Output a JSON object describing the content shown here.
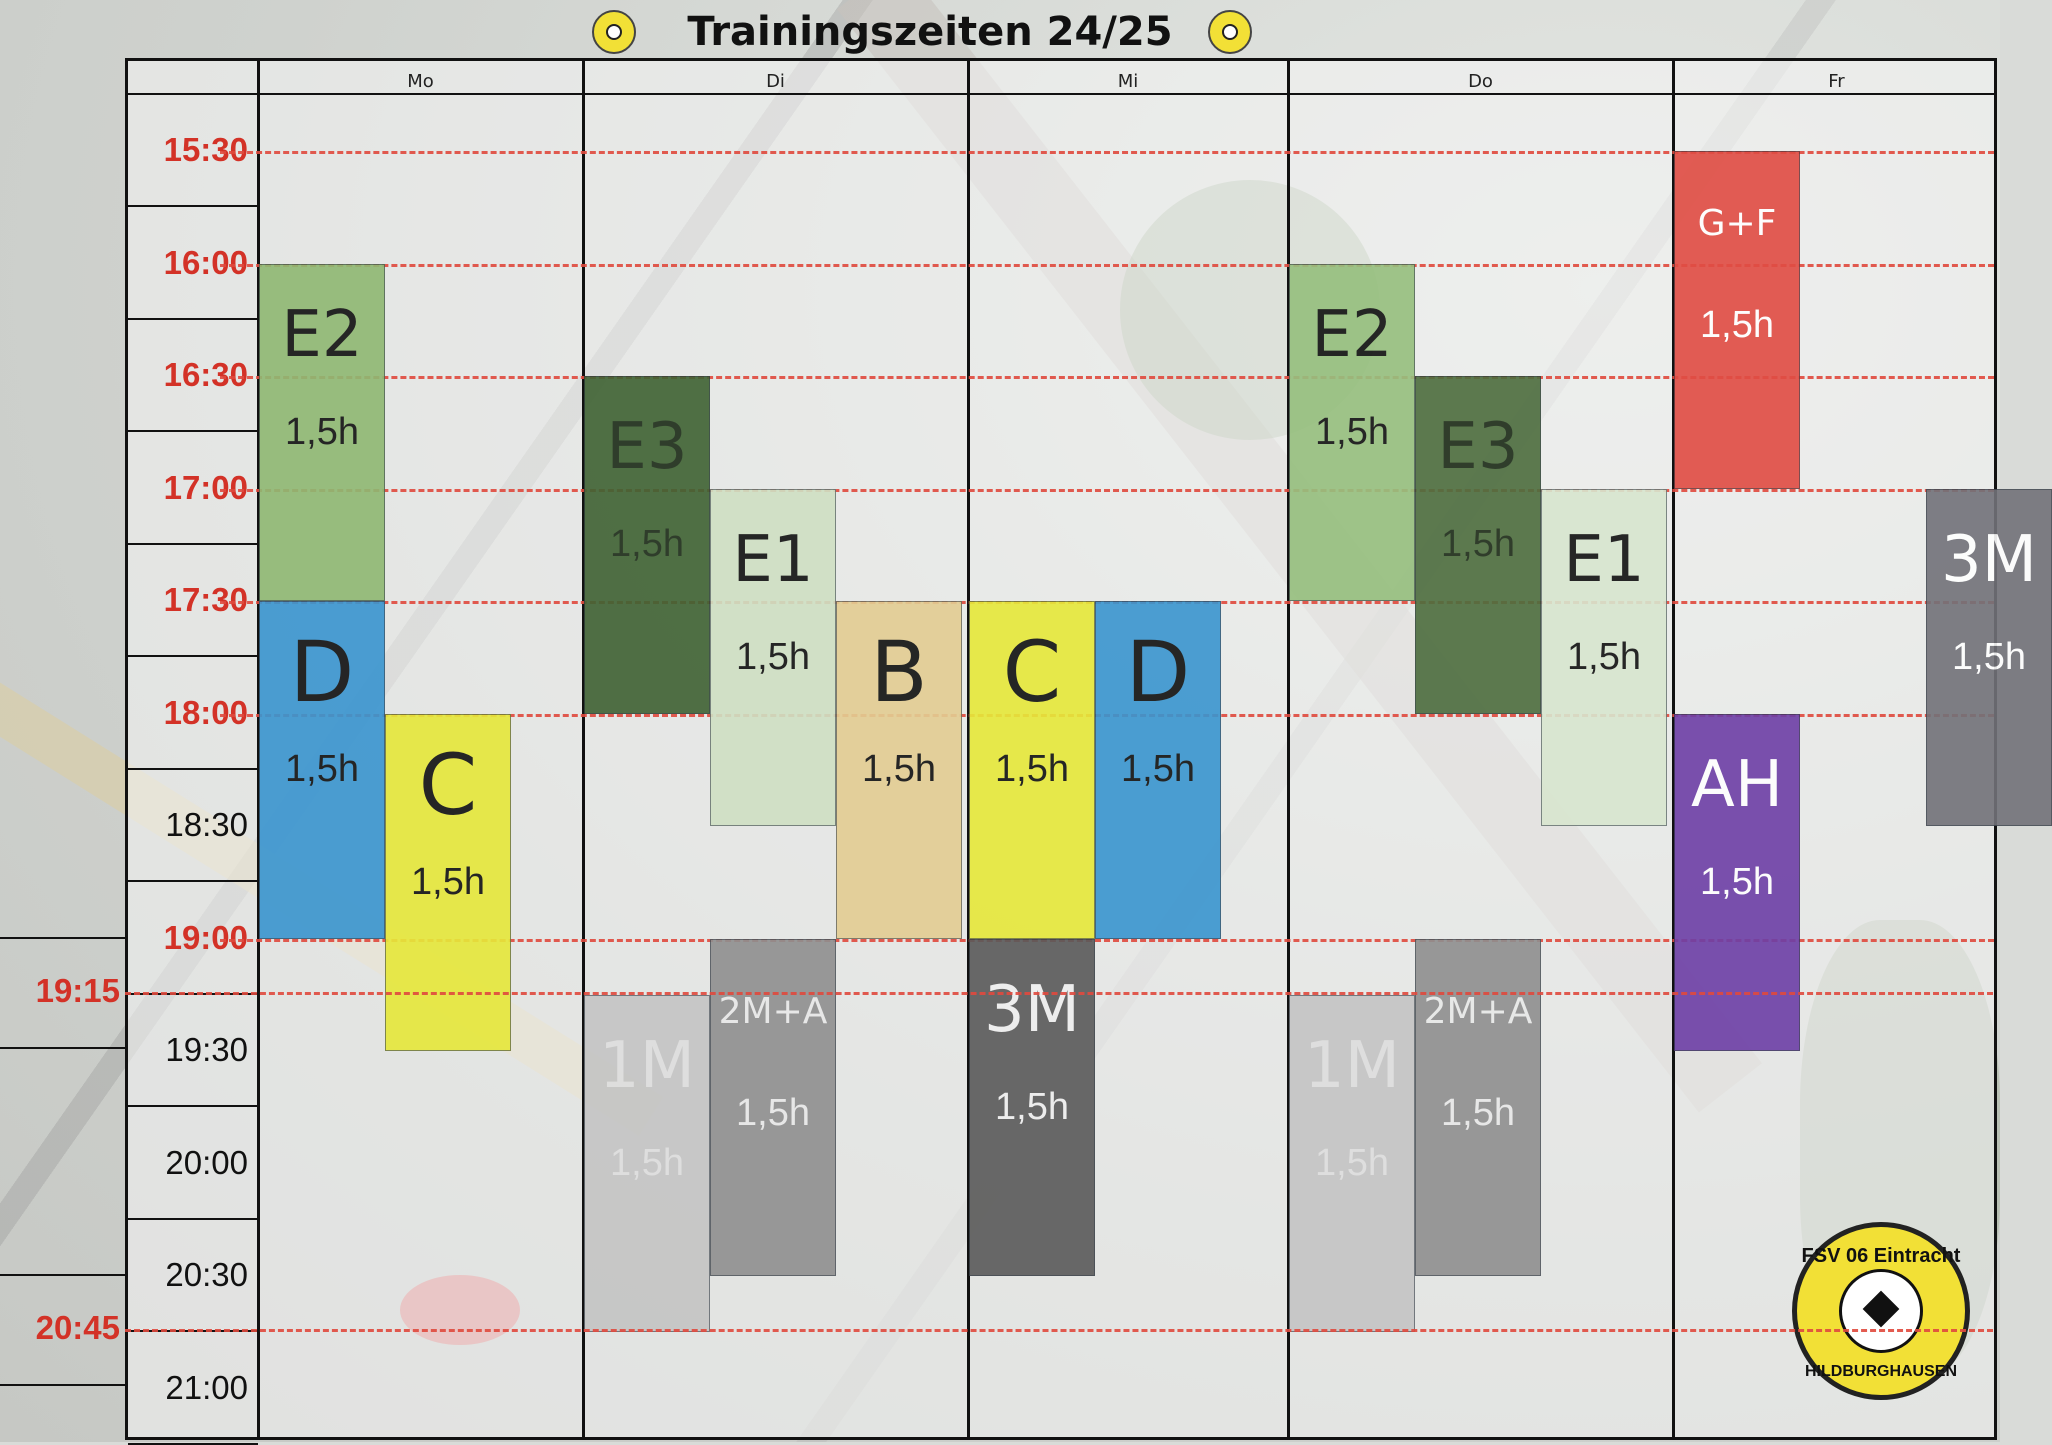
{
  "title": "Trainingszeiten 24/25",
  "days": [
    "Mo",
    "Di",
    "Mi",
    "Do",
    "Fr"
  ],
  "times": [
    {
      "label": "15:30",
      "red": true
    },
    {
      "label": "16:00",
      "red": true
    },
    {
      "label": "16:30",
      "red": true
    },
    {
      "label": "17:00",
      "red": true
    },
    {
      "label": "17:30",
      "red": true
    },
    {
      "label": "18:00",
      "red": true
    },
    {
      "label": "18:30",
      "red": false
    },
    {
      "label": "19:00",
      "red": true
    },
    {
      "label": "19:30",
      "red": false
    },
    {
      "label": "20:00",
      "red": false
    },
    {
      "label": "20:30",
      "red": false
    },
    {
      "label": "21:00",
      "red": false
    }
  ],
  "side_times": [
    "19:15",
    "20:45"
  ],
  "blocks": [
    {
      "day": "Mo",
      "lane": 0,
      "start": "16:00",
      "end": "17:30",
      "name": "E2",
      "dur": "1,5h",
      "color": "#8fb872",
      "text": "#111111"
    },
    {
      "day": "Mo",
      "lane": 0,
      "start": "17:30",
      "end": "19:00",
      "name": "D",
      "dur": "1,5h",
      "color": "#3a95cf",
      "text": "#111111"
    },
    {
      "day": "Mo",
      "lane": 1,
      "start": "18:00",
      "end": "19:30",
      "name": "C",
      "dur": "1,5h",
      "color": "#e6e83a",
      "text": "#111111"
    },
    {
      "day": "Di",
      "lane": 0,
      "start": "16:30",
      "end": "18:00",
      "name": "E3",
      "dur": "1,5h",
      "color": "#3f6233",
      "text": "#1c2b17"
    },
    {
      "day": "Di",
      "lane": 1,
      "start": "17:00",
      "end": "18:30",
      "name": "E1",
      "dur": "1,5h",
      "color": "#cfe0c3",
      "text": "#111111"
    },
    {
      "day": "Di",
      "lane": 2,
      "start": "17:30",
      "end": "19:00",
      "name": "B",
      "dur": "1,5h",
      "color": "#e3cd92",
      "text": "#111111"
    },
    {
      "day": "Di",
      "lane": 0,
      "start": "19:15",
      "end": "20:45",
      "name": "1M",
      "dur": "1,5h",
      "color": "#c4c4c4",
      "text": "#dedede"
    },
    {
      "day": "Di",
      "lane": 1,
      "start": "19:00",
      "end": "20:30",
      "name": "2M+A",
      "dur": "1,5h",
      "color": "#8f8f8f",
      "text": "#e8e8e8"
    },
    {
      "day": "Mi",
      "lane": 0,
      "start": "17:30",
      "end": "19:00",
      "name": "C",
      "dur": "1,5h",
      "color": "#e6e83a",
      "text": "#111111"
    },
    {
      "day": "Mi",
      "lane": 1,
      "start": "17:30",
      "end": "19:00",
      "name": "D",
      "dur": "1,5h",
      "color": "#3a95cf",
      "text": "#111111"
    },
    {
      "day": "Mi",
      "lane": 0,
      "start": "19:00",
      "end": "20:30",
      "name": "3M",
      "dur": "1,5h",
      "color": "#5a5a5a",
      "text": "#eeeeee"
    },
    {
      "day": "Do",
      "lane": 0,
      "start": "16:00",
      "end": "17:30",
      "name": "E2",
      "dur": "1,5h",
      "color": "#96bf7e",
      "text": "#111111"
    },
    {
      "day": "Do",
      "lane": 1,
      "start": "16:30",
      "end": "18:00",
      "name": "E3",
      "dur": "1,5h",
      "color": "#4d6d3e",
      "text": "#1c2b17"
    },
    {
      "day": "Do",
      "lane": 2,
      "start": "17:00",
      "end": "18:30",
      "name": "E1",
      "dur": "1,5h",
      "color": "#d8e6cf",
      "text": "#111111"
    },
    {
      "day": "Do",
      "lane": 0,
      "start": "19:15",
      "end": "20:45",
      "name": "1M",
      "dur": "1,5h",
      "color": "#c4c4c4",
      "text": "#dedede"
    },
    {
      "day": "Do",
      "lane": 1,
      "start": "19:00",
      "end": "20:30",
      "name": "2M+A",
      "dur": "1,5h",
      "color": "#8f8f8f",
      "text": "#e8e8e8"
    },
    {
      "day": "Fr",
      "lane": 0,
      "start": "15:30",
      "end": "17:00",
      "name": "G+F",
      "dur": "1,5h",
      "color": "#e04c43",
      "text": "#ffffff"
    },
    {
      "day": "Fr",
      "lane": 0,
      "start": "18:00",
      "end": "19:30",
      "name": "AH",
      "dur": "1,5h",
      "color": "#6d3fa6",
      "text": "#ffffff"
    },
    {
      "day": "Fr",
      "lane": 2,
      "start": "17:00",
      "end": "18:30",
      "name": "3M",
      "dur": "1,5h",
      "color": "#727279",
      "text": "#ffffff"
    }
  ],
  "logo": {
    "top_text": "FSV 06 Eintracht",
    "bottom_text": "HILDBURGHAUSEN"
  }
}
